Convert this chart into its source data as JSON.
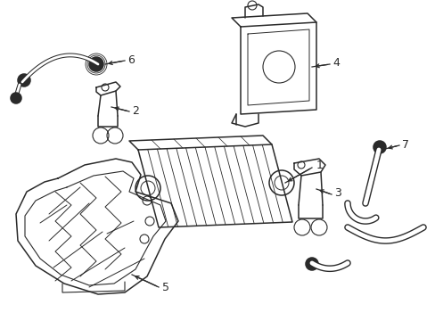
{
  "bg_color": "#ffffff",
  "line_color": "#2a2a2a",
  "lw": 1.1,
  "fig_w": 4.89,
  "fig_h": 3.6,
  "dpi": 100
}
